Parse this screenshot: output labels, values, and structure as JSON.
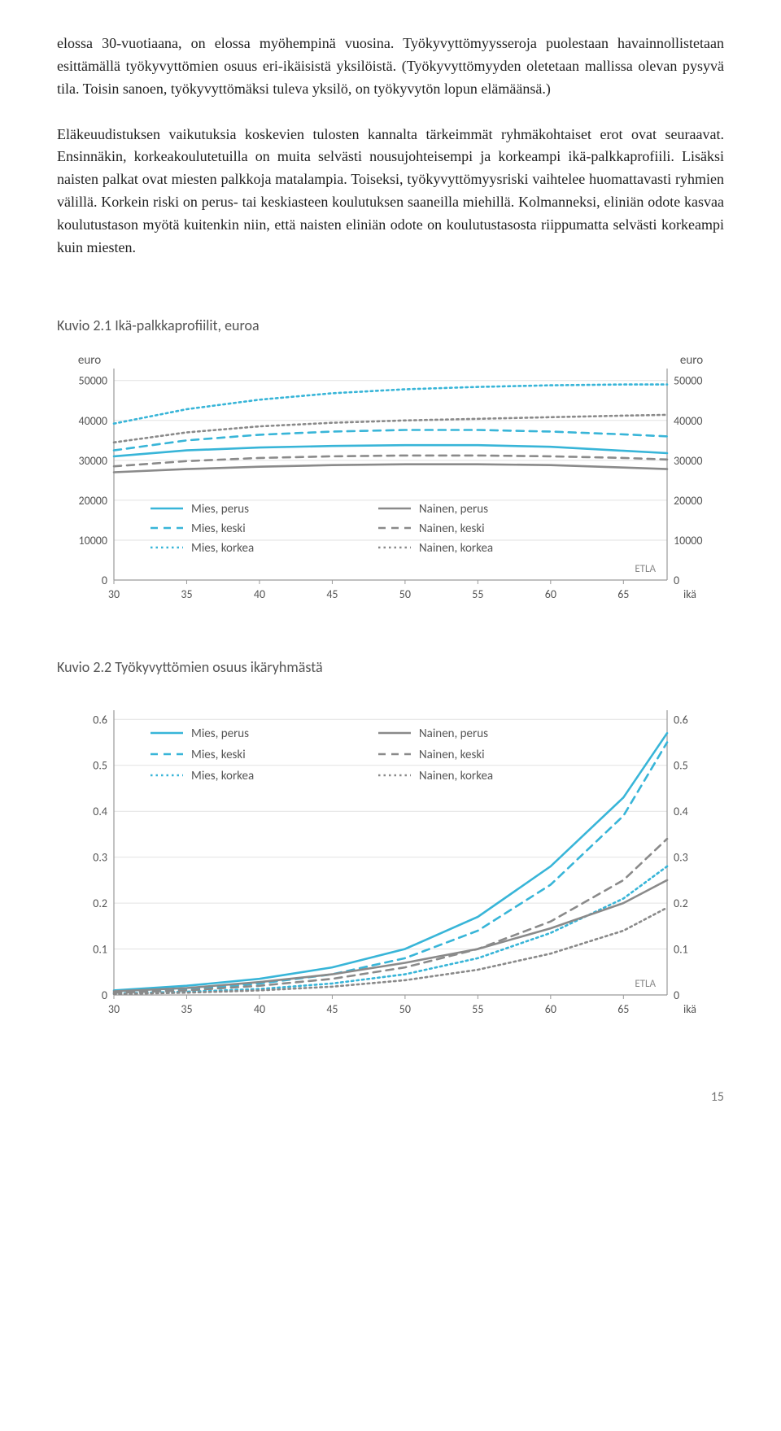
{
  "paragraph1": "elossa 30-vuotiaana, on elossa myöhempinä vuosina. Työkyvyttömyysseroja puolestaan havainnollistetaan esittämällä työkyvyttömien osuus eri-ikäisistä yksilöistä. (Työkyvyttömyyden oletetaan mallissa olevan pysyvä tila. Toisin sanoen, työkyvyttömäksi tuleva yksilö, on työkyvytön lopun elämäänsä.)",
  "paragraph2": "Eläkeuudistuksen vaikutuksia koskevien tulosten kannalta tärkeimmät ryhmäkohtaiset erot ovat seuraavat. Ensinnäkin, korkeakoulutetuilla on muita selvästi nousujohteisempi ja korkeampi ikä-palkkaprofiili. Lisäksi naisten palkat ovat miesten palkkoja matalampia. Toiseksi, työkyvyttömyysriski vaihtelee huomattavasti ryhmien välillä. Korkein riski on perus- tai keskiasteen koulutuksen saaneilla miehillä. Kolmanneksi, eliniän odote kasvaa koulutustason myötä kuitenkin niin, että naisten eliniän odote on koulutustasosta riippumatta selvästi korkeampi kuin miesten.",
  "page_number": "15",
  "legend": {
    "mies_perus": "Mies, perus",
    "mies_keski": "Mies, keski",
    "mies_korkea": "Mies, korkea",
    "nainen_perus": "Nainen, perus",
    "nainen_keski": "Nainen, keski",
    "nainen_korkea": "Nainen, korkea"
  },
  "etla_label": "ETLA",
  "chart1": {
    "caption": "Kuvio 2.1 Ikä-palkkaprofiilit, euroa",
    "type": "line",
    "y_label_left": "euro",
    "y_label_right": "euro",
    "x_label": "ikä",
    "x_ticks": [
      30,
      35,
      40,
      45,
      50,
      55,
      60,
      65
    ],
    "xlim": [
      30,
      68
    ],
    "y_ticks": [
      0,
      10000,
      20000,
      30000,
      40000,
      50000
    ],
    "ylim": [
      0,
      53000
    ],
    "grid_color": "#e2e2e2",
    "axis_color": "#9a9a9a",
    "background_color": "#ffffff",
    "axis_fontsize": 14,
    "label_fontsize": 15,
    "label_font": "Calibri, Arial, sans-serif",
    "legend_fontsize": 15,
    "line_width": 2.6,
    "series": [
      {
        "key": "mies_perus",
        "color": "#38b5d8",
        "dash": "",
        "x": [
          30,
          35,
          40,
          45,
          50,
          55,
          60,
          65,
          68
        ],
        "y": [
          31000,
          32500,
          33200,
          33600,
          33800,
          33800,
          33400,
          32400,
          31800
        ]
      },
      {
        "key": "mies_keski",
        "color": "#38b5d8",
        "dash": "9 7",
        "x": [
          30,
          35,
          40,
          45,
          50,
          55,
          60,
          65,
          68
        ],
        "y": [
          32500,
          35000,
          36400,
          37200,
          37600,
          37600,
          37200,
          36500,
          36000
        ]
      },
      {
        "key": "mies_korkea",
        "color": "#38b5d8",
        "dash": "2.5 4",
        "x": [
          30,
          35,
          40,
          45,
          50,
          55,
          60,
          65,
          68
        ],
        "y": [
          39200,
          42800,
          45200,
          46800,
          47800,
          48400,
          48800,
          49000,
          49000
        ]
      },
      {
        "key": "nainen_perus",
        "color": "#8a8a8a",
        "dash": "",
        "x": [
          30,
          35,
          40,
          45,
          50,
          55,
          60,
          65,
          68
        ],
        "y": [
          27000,
          27800,
          28400,
          28800,
          29000,
          29000,
          28800,
          28200,
          27800
        ]
      },
      {
        "key": "nainen_keski",
        "color": "#8a8a8a",
        "dash": "9 7",
        "x": [
          30,
          35,
          40,
          45,
          50,
          55,
          60,
          65,
          68
        ],
        "y": [
          28500,
          29800,
          30600,
          31000,
          31200,
          31200,
          31000,
          30600,
          30200
        ]
      },
      {
        "key": "nainen_korkea",
        "color": "#8a8a8a",
        "dash": "2.5 4",
        "x": [
          30,
          35,
          40,
          45,
          50,
          55,
          60,
          65,
          68
        ],
        "y": [
          34500,
          37000,
          38500,
          39400,
          40000,
          40400,
          40800,
          41200,
          41400
        ]
      }
    ]
  },
  "chart2": {
    "caption": "Kuvio 2.2 Työkyvyttömien osuus ikäryhmästä",
    "type": "line",
    "x_label": "ikä",
    "x_ticks": [
      30,
      35,
      40,
      45,
      50,
      55,
      60,
      65
    ],
    "xlim": [
      30,
      68
    ],
    "y_ticks": [
      0,
      0.1,
      0.2,
      0.3,
      0.4,
      0.5,
      0.6
    ],
    "ylim": [
      0,
      0.62
    ],
    "grid_color": "#e2e2e2",
    "axis_color": "#9a9a9a",
    "background_color": "#ffffff",
    "axis_fontsize": 14,
    "label_font": "Calibri, Arial, sans-serif",
    "legend_fontsize": 15,
    "line_width": 2.6,
    "series": [
      {
        "key": "mies_perus",
        "color": "#38b5d8",
        "dash": "",
        "x": [
          30,
          35,
          40,
          45,
          50,
          55,
          60,
          65,
          68
        ],
        "y": [
          0.01,
          0.02,
          0.035,
          0.06,
          0.1,
          0.17,
          0.28,
          0.43,
          0.57
        ]
      },
      {
        "key": "mies_keski",
        "color": "#38b5d8",
        "dash": "9 7",
        "x": [
          30,
          35,
          40,
          45,
          50,
          55,
          60,
          65,
          68
        ],
        "y": [
          0.005,
          0.012,
          0.025,
          0.045,
          0.08,
          0.14,
          0.24,
          0.39,
          0.55
        ]
      },
      {
        "key": "mies_korkea",
        "color": "#38b5d8",
        "dash": "2.5 4",
        "x": [
          30,
          35,
          40,
          45,
          50,
          55,
          60,
          65,
          68
        ],
        "y": [
          0.003,
          0.007,
          0.013,
          0.025,
          0.045,
          0.08,
          0.135,
          0.21,
          0.28
        ]
      },
      {
        "key": "nainen_perus",
        "color": "#8a8a8a",
        "dash": "",
        "x": [
          30,
          35,
          40,
          45,
          50,
          55,
          60,
          65,
          68
        ],
        "y": [
          0.008,
          0.015,
          0.028,
          0.045,
          0.07,
          0.1,
          0.145,
          0.2,
          0.25
        ]
      },
      {
        "key": "nainen_keski",
        "color": "#8a8a8a",
        "dash": "9 7",
        "x": [
          30,
          35,
          40,
          45,
          50,
          55,
          60,
          65,
          68
        ],
        "y": [
          0.005,
          0.01,
          0.02,
          0.035,
          0.06,
          0.1,
          0.16,
          0.25,
          0.34
        ]
      },
      {
        "key": "nainen_korkea",
        "color": "#8a8a8a",
        "dash": "2.5 4",
        "x": [
          30,
          35,
          40,
          45,
          50,
          55,
          60,
          65,
          68
        ],
        "y": [
          0.002,
          0.005,
          0.01,
          0.018,
          0.032,
          0.055,
          0.09,
          0.14,
          0.19
        ]
      }
    ]
  }
}
